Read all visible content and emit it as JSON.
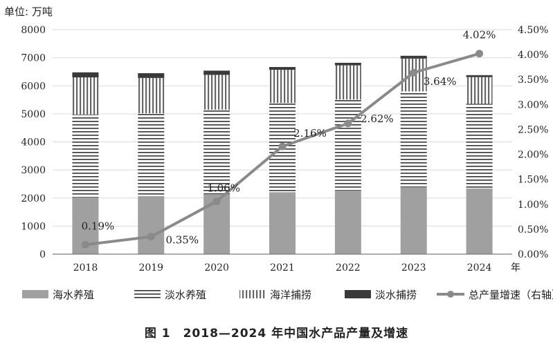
{
  "caption": "图 1　2018—2024 年中国水产品产量及增速",
  "chart_data": {
    "type": "bar",
    "stacked": true,
    "title": "",
    "ylabel": "单位: 万吨",
    "xlabel": "年",
    "categories": [
      "2018",
      "2019",
      "2020",
      "2021",
      "2022",
      "2023",
      "2024"
    ],
    "ylim": [
      0,
      8000
    ],
    "yticks": [
      "0",
      "1000",
      "2000",
      "3000",
      "4000",
      "5000",
      "6000",
      "7000",
      "8000"
    ],
    "y2lim": [
      0,
      4.5
    ],
    "y2ticks": [
      "0.00%",
      "0.50%",
      "1.00%",
      "1.50%",
      "2.00%",
      "2.50%",
      "3.00%",
      "3.50%",
      "4.00%",
      "4.50%"
    ],
    "grid": true,
    "legend_position": "bottom",
    "series": [
      {
        "name": "海水养殖",
        "values": [
          2030,
          2070,
          2140,
          2210,
          2270,
          2390,
          2340
        ],
        "color": "#a0a0a0",
        "pattern": "solid"
      },
      {
        "name": "淡水养殖",
        "values": [
          2950,
          2950,
          3010,
          3180,
          3240,
          3410,
          3020
        ],
        "color": "#333333",
        "pattern": "horizontal-lines"
      },
      {
        "name": "海洋捕捞",
        "values": [
          1320,
          1260,
          1240,
          1180,
          1220,
          1170,
          950
        ],
        "color": "#666666",
        "pattern": "vertical-lines"
      },
      {
        "name": "淡水捕捞",
        "values": [
          180,
          170,
          150,
          100,
          90,
          100,
          70
        ],
        "color": "#3a3a3a",
        "pattern": "solid"
      }
    ],
    "line_series": {
      "name": "总产量增速（右轴）",
      "axis": "right",
      "values": [
        0.19,
        0.35,
        1.06,
        2.16,
        2.62,
        3.64,
        4.02
      ],
      "labels": [
        "0.19%",
        "0.35%",
        "1.06%",
        "2.16%",
        "2.62%",
        "3.64%",
        "4.02%"
      ],
      "color": "#8a8a8a"
    }
  }
}
